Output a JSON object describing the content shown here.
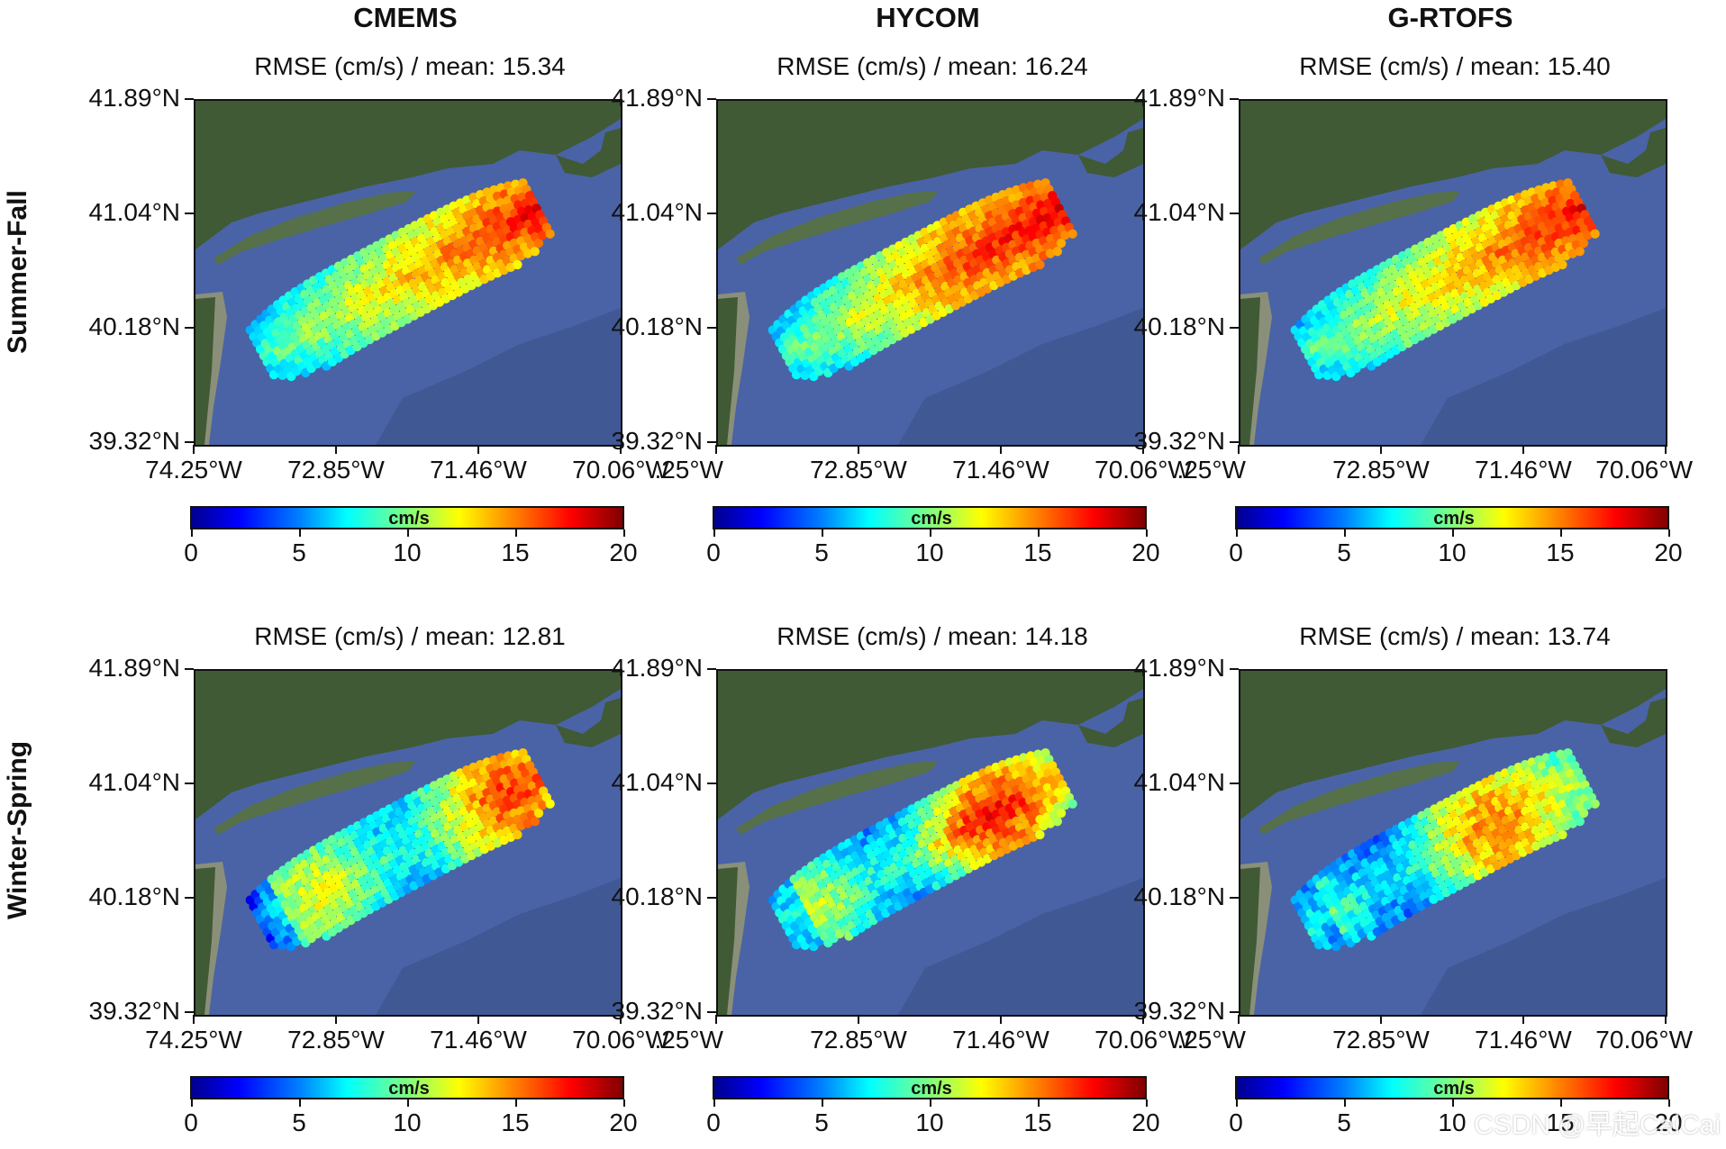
{
  "columns": [
    "CMEMS",
    "HYCOM",
    "G-RTOFS"
  ],
  "rows": [
    "Summer-Fall",
    "Winter-Spring"
  ],
  "panels": [
    {
      "subtitle": "RMSE (cm/s) / mean: 15.34",
      "mean": 15.34
    },
    {
      "subtitle": "RMSE (cm/s) / mean: 16.24",
      "mean": 16.24
    },
    {
      "subtitle": "RMSE (cm/s) / mean: 15.40",
      "mean": 15.4
    },
    {
      "subtitle": "RMSE (cm/s) / mean: 12.81",
      "mean": 12.81
    },
    {
      "subtitle": "RMSE (cm/s) / mean: 14.18",
      "mean": 14.18
    },
    {
      "subtitle": "RMSE (cm/s) / mean: 13.74",
      "mean": 13.74
    }
  ],
  "y_ticks": [
    "41.89°N",
    "41.04°N",
    "40.18°N",
    "39.32°N"
  ],
  "x_ticks": [
    "74.25°W",
    "72.85°W",
    "71.46°W",
    "70.06°W"
  ],
  "x_ticks_clipped": [
    ".25°W",
    "72.85°W",
    "71.46°W",
    "70.06°W"
  ],
  "colorbar": {
    "label": "cm/s",
    "ticks": [
      "0",
      "5",
      "10",
      "15",
      "20"
    ],
    "range": [
      0,
      20
    ],
    "colormap": "jet"
  },
  "colors": {
    "ocean": "#4a63a6",
    "land": "#3f5a34",
    "coast_light": "#8a8f7a"
  },
  "watermark": "CSDN @早起CaiCai"
}
